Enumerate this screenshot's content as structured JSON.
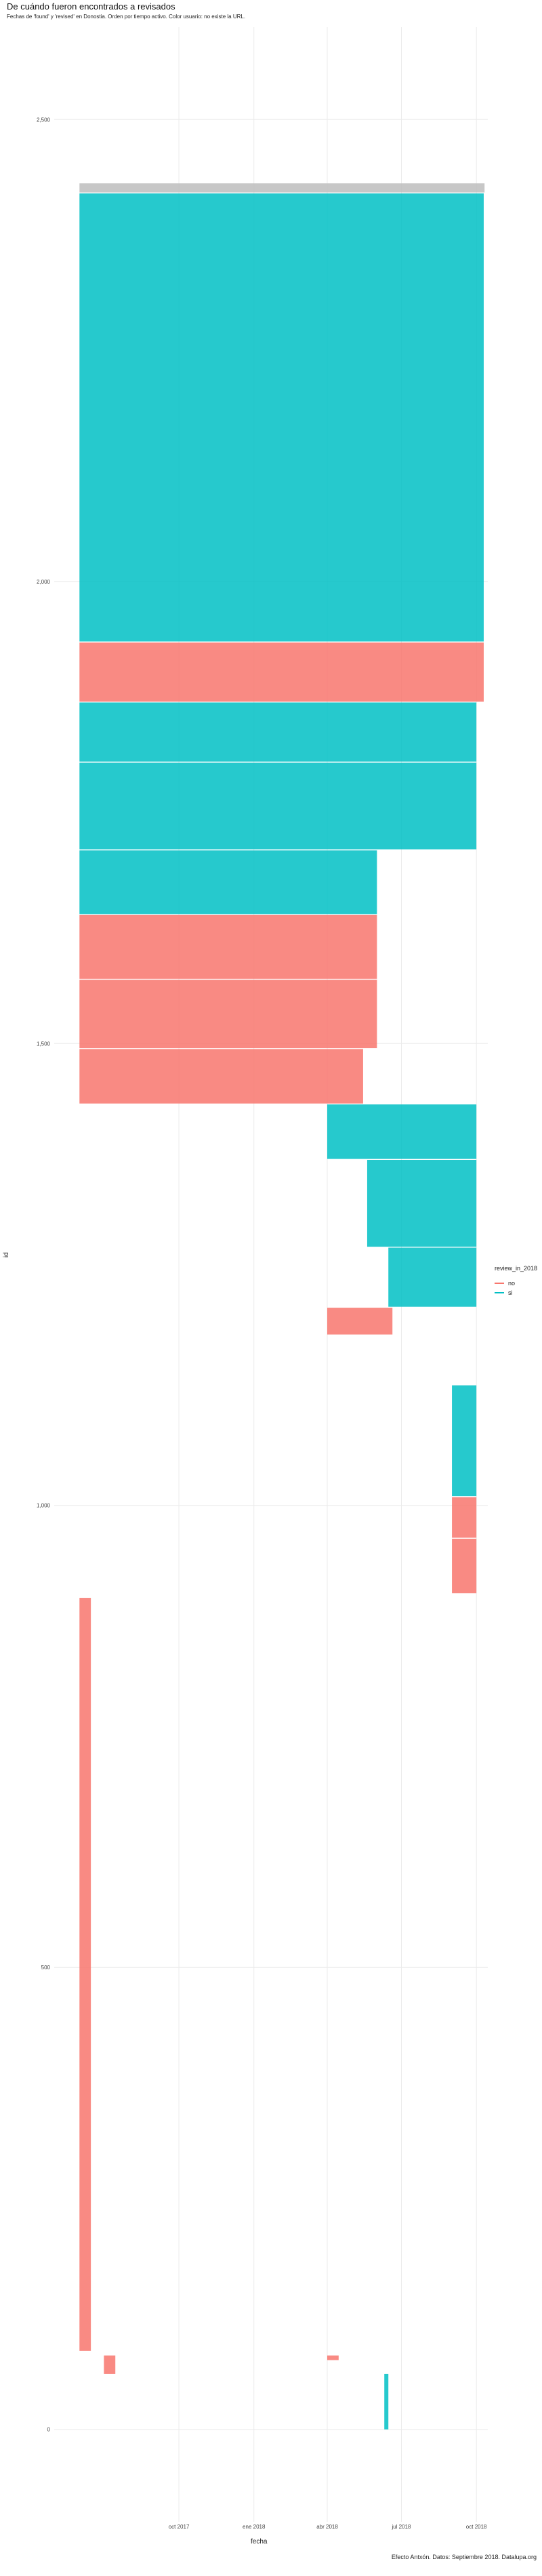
{
  "chart_data": {
    "type": "bar",
    "orientation": "horizontal-segments",
    "title": "De cuándo fueron encontrados a revisados",
    "subtitle": "Fechas de 'found' y 'revised' en Donostia. Orden por tiempo activo. Color usuario: no existe la URL.",
    "xlabel": "fecha",
    "ylabel": "id",
    "caption": "Efecto Antxón. Datos: Septiembre 2018. Datalupa.org",
    "xlim": [
      "2017-05-01",
      "2018-10-15"
    ],
    "ylim": [
      -100,
      2600
    ],
    "x_ticks": [
      {
        "label": "oct 2017",
        "date": "2017-10-01"
      },
      {
        "label": "ene 2018",
        "date": "2018-01-01"
      },
      {
        "label": "abr 2018",
        "date": "2018-04-01"
      },
      {
        "label": "jul 2018",
        "date": "2018-07-01"
      },
      {
        "label": "oct 2018",
        "date": "2018-10-01"
      }
    ],
    "y_ticks": [
      0,
      500,
      1000,
      1500,
      2000,
      2500
    ],
    "grid": true,
    "legend": {
      "title": "review_in_2018",
      "position": "right",
      "entries": [
        {
          "label": "no",
          "color": "#F8766D"
        },
        {
          "label": "si",
          "color": "#00BFC4"
        }
      ]
    },
    "segments": [
      {
        "y_from": 2421,
        "y_to": 2431,
        "x_start": "2017-06-01",
        "x_end": "2018-10-11",
        "review_in_2018": "na"
      },
      {
        "y_from": 1935,
        "y_to": 2420,
        "x_start": "2017-06-01",
        "x_end": "2018-10-10",
        "review_in_2018": "si"
      },
      {
        "y_from": 1870,
        "y_to": 1934,
        "x_start": "2017-06-01",
        "x_end": "2018-10-10",
        "review_in_2018": "no"
      },
      {
        "y_from": 1805,
        "y_to": 1869,
        "x_start": "2017-06-01",
        "x_end": "2018-10-01",
        "review_in_2018": "si"
      },
      {
        "y_from": 1710,
        "y_to": 1804,
        "x_start": "2017-06-01",
        "x_end": "2018-10-01",
        "review_in_2018": "si"
      },
      {
        "y_from": 1640,
        "y_to": 1709,
        "x_start": "2017-06-01",
        "x_end": "2018-06-01",
        "review_in_2018": "si"
      },
      {
        "y_from": 1570,
        "y_to": 1639,
        "x_start": "2017-06-01",
        "x_end": "2018-06-01",
        "review_in_2018": "no"
      },
      {
        "y_from": 1495,
        "y_to": 1569,
        "x_start": "2017-06-01",
        "x_end": "2018-06-01",
        "review_in_2018": "no"
      },
      {
        "y_from": 1435,
        "y_to": 1494,
        "x_start": "2017-06-01",
        "x_end": "2018-05-15",
        "review_in_2018": "no"
      },
      {
        "y_from": 1375,
        "y_to": 1434,
        "x_start": "2018-04-01",
        "x_end": "2018-10-01",
        "review_in_2018": "si"
      },
      {
        "y_from": 1280,
        "y_to": 1374,
        "x_start": "2018-05-20",
        "x_end": "2018-10-01",
        "review_in_2018": "si"
      },
      {
        "y_from": 1215,
        "y_to": 1279,
        "x_start": "2018-06-15",
        "x_end": "2018-10-01",
        "review_in_2018": "si"
      },
      {
        "y_from": 1185,
        "y_to": 1214,
        "x_start": "2018-04-01",
        "x_end": "2018-06-20",
        "review_in_2018": "no"
      },
      {
        "y_from": 1010,
        "y_to": 1130,
        "x_start": "2018-09-01",
        "x_end": "2018-10-01",
        "review_in_2018": "si"
      },
      {
        "y_from": 965,
        "y_to": 1009,
        "x_start": "2018-09-01",
        "x_end": "2018-10-01",
        "review_in_2018": "no"
      },
      {
        "y_from": 905,
        "y_to": 964,
        "x_start": "2018-09-01",
        "x_end": "2018-10-01",
        "review_in_2018": "no"
      },
      {
        "y_from": 85,
        "y_to": 900,
        "x_start": "2017-06-01",
        "x_end": "2017-06-15",
        "review_in_2018": "no"
      },
      {
        "y_from": 60,
        "y_to": 80,
        "x_start": "2017-07-01",
        "x_end": "2017-07-15",
        "review_in_2018": "no"
      },
      {
        "y_from": 75,
        "y_to": 80,
        "x_start": "2018-04-01",
        "x_end": "2018-04-15",
        "review_in_2018": "no"
      },
      {
        "y_from": 0,
        "y_to": 60,
        "x_start": "2018-06-10",
        "x_end": "2018-06-15",
        "review_in_2018": "si"
      }
    ]
  }
}
